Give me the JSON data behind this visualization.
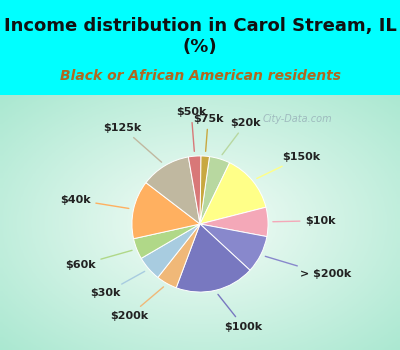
{
  "title": "Income distribution in Carol Stream, IL\n(%)",
  "subtitle": "Black or African American residents",
  "bg_cyan": "#00FFFF",
  "bg_chart_edge": "#a8e8d0",
  "bg_chart_center": "#f0faf8",
  "labels": [
    "$20k",
    "$150k",
    "$10k",
    "> $200k",
    "$100k",
    "$200k",
    "$30k",
    "$60k",
    "$40k",
    "$125k",
    "$50k",
    "$75k"
  ],
  "values": [
    5,
    14,
    7,
    9,
    19,
    5,
    6,
    5,
    14,
    12,
    3,
    2
  ],
  "colors": [
    "#b8d8a0",
    "#ffff88",
    "#f4a8b8",
    "#8888cc",
    "#7878c0",
    "#f0b878",
    "#a8cce0",
    "#b0d888",
    "#ffb060",
    "#c0b8a0",
    "#d87878",
    "#c8a840"
  ],
  "title_fontsize": 13,
  "subtitle_fontsize": 10,
  "label_fontsize": 8,
  "startangle": 82,
  "watermark": "City-Data.com"
}
